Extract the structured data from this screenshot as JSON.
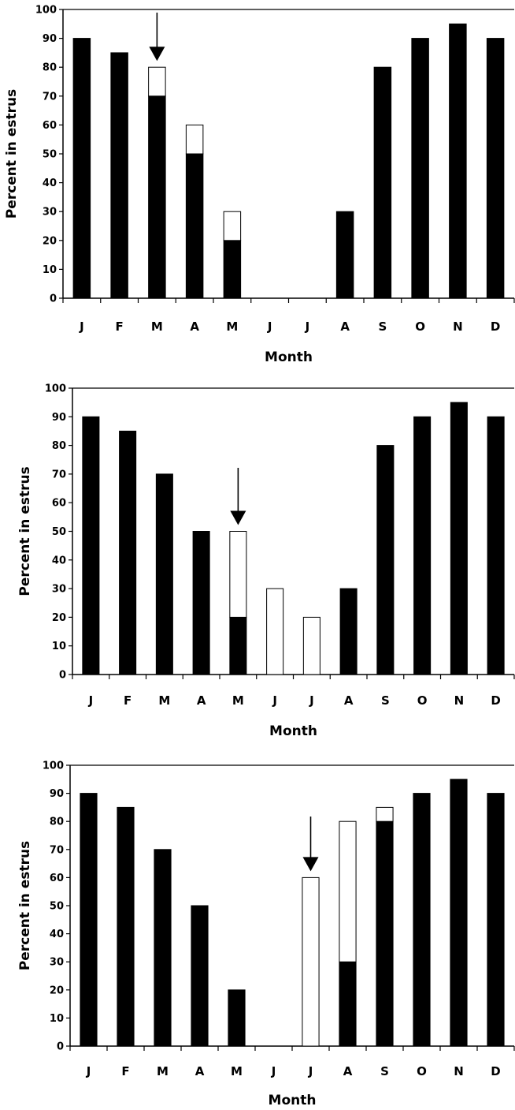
{
  "colors": {
    "baseline_fill": "#000000",
    "induced_fill": "#ffffff",
    "axis": "#000000"
  },
  "chart_data": [
    {
      "type": "bar",
      "stacked": true,
      "title": "",
      "xlabel": "Month",
      "ylabel": "Percent in estrus",
      "ylim": [
        0,
        100
      ],
      "yticks": [
        0,
        10,
        20,
        30,
        40,
        50,
        60,
        70,
        80,
        90,
        100
      ],
      "categories": [
        "J",
        "F",
        "M",
        "A",
        "M",
        "J",
        "J",
        "A",
        "S",
        "O",
        "N",
        "D"
      ],
      "series": [
        {
          "color": "#000000",
          "values": [
            90,
            85,
            70,
            50,
            20,
            0,
            0,
            30,
            80,
            90,
            95,
            90
          ]
        },
        {
          "color": "#ffffff",
          "values": [
            0,
            0,
            10,
            10,
            10,
            0,
            0,
            0,
            0,
            0,
            0,
            0
          ]
        }
      ],
      "arrow_at": "M",
      "arrow_index": 2
    },
    {
      "type": "bar",
      "stacked": true,
      "title": "",
      "xlabel": "Month",
      "ylabel": "Percent in estrus",
      "ylim": [
        0,
        100
      ],
      "yticks": [
        0,
        10,
        20,
        30,
        40,
        50,
        60,
        70,
        80,
        90,
        100
      ],
      "categories": [
        "J",
        "F",
        "M",
        "A",
        "M",
        "J",
        "J",
        "A",
        "S",
        "O",
        "N",
        "D"
      ],
      "series": [
        {
          "color": "#000000",
          "values": [
            90,
            85,
            70,
            50,
            20,
            0,
            0,
            30,
            80,
            90,
            95,
            90
          ]
        },
        {
          "color": "#ffffff",
          "values": [
            0,
            0,
            0,
            0,
            30,
            30,
            20,
            0,
            0,
            0,
            0,
            0
          ]
        }
      ],
      "arrow_at": "M",
      "arrow_index": 4
    },
    {
      "type": "bar",
      "stacked": true,
      "title": "",
      "xlabel": "Month",
      "ylabel": "Percent in estrus",
      "ylim": [
        0,
        100
      ],
      "yticks": [
        0,
        10,
        20,
        30,
        40,
        50,
        60,
        70,
        80,
        90,
        100
      ],
      "categories": [
        "J",
        "F",
        "M",
        "A",
        "M",
        "J",
        "J",
        "A",
        "S",
        "O",
        "N",
        "D"
      ],
      "series": [
        {
          "color": "#000000",
          "values": [
            90,
            85,
            70,
            50,
            20,
            0,
            0,
            30,
            80,
            90,
            95,
            90
          ]
        },
        {
          "color": "#ffffff",
          "values": [
            0,
            0,
            0,
            0,
            0,
            0,
            60,
            50,
            5,
            0,
            0,
            0
          ]
        }
      ],
      "arrow_at": "J",
      "arrow_index": 6
    }
  ]
}
